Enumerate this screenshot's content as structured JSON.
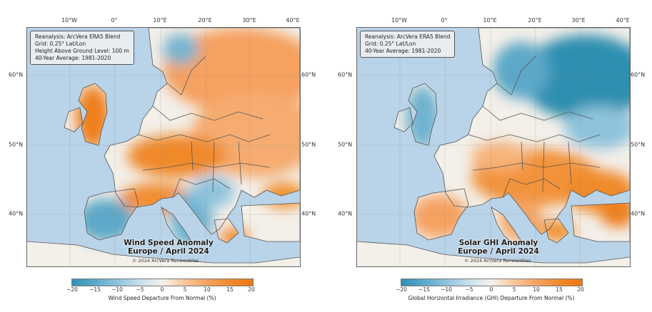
{
  "lon_labels": [
    "10°W",
    "0°",
    "10°E",
    "20°E",
    "30°E",
    "40°E"
  ],
  "lat_labels": [
    "60°N",
    "50°N",
    "40°N"
  ],
  "colorbar_ticks": [
    "−20",
    "−15",
    "−10",
    "−5",
    "0",
    "5",
    "10",
    "15",
    "20"
  ],
  "colors": {
    "ocean": "#b9d3e8",
    "land_neutral": "#f3efe9",
    "positive": "#f08a2c",
    "negative": "#2f93b5",
    "border": "#555555"
  },
  "wind": {
    "info": [
      "Reanalysis: ArcVera ERA5 Blend",
      "Grid: 0.25° Lat/Lon",
      "Height Above Ground Level: 100 m",
      "40-Year Average: 1981-2020"
    ],
    "title_line1": "Wind Speed Anomaly",
    "title_line2": "Europe / April 2024",
    "copyright": "© 2024 ArcVera Renewables",
    "colorbar_label": "Wind Speed Departure From Normal (%)"
  },
  "solar": {
    "info": [
      "Reanalysis: ArcVera ERA5 Blend",
      "Grid: 0.25° Lat/Lon",
      "40-Year Average: 1981-2020"
    ],
    "title_line1": "Solar GHI Anomaly",
    "title_line2": "Europe / April 2024",
    "copyright": "© 2024 ArcVera Renewables",
    "colorbar_label": "Global Horizontal Irradiance (GHI) Departure From Normal (%)"
  }
}
